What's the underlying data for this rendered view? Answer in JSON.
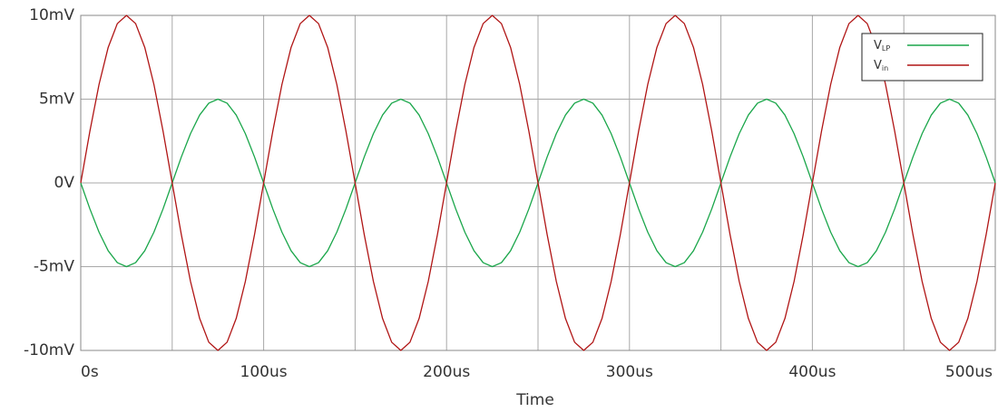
{
  "chart_data": {
    "type": "line",
    "x_label": "Time",
    "x": [
      0,
      5,
      10,
      15,
      20,
      25,
      30,
      35,
      40,
      45,
      50,
      55,
      60,
      65,
      70,
      75,
      80,
      85,
      90,
      95,
      100,
      105,
      110,
      115,
      120,
      125,
      130,
      135,
      140,
      145,
      150,
      155,
      160,
      165,
      170,
      175,
      180,
      185,
      190,
      195,
      200,
      205,
      210,
      215,
      220,
      225,
      230,
      235,
      240,
      245,
      250,
      255,
      260,
      265,
      270,
      275,
      280,
      285,
      290,
      295,
      300,
      305,
      310,
      315,
      320,
      325,
      330,
      335,
      340,
      345,
      350,
      355,
      360,
      365,
      370,
      375,
      380,
      385,
      390,
      395,
      400,
      405,
      410,
      415,
      420,
      425,
      430,
      435,
      440,
      445,
      450,
      455,
      460,
      465,
      470,
      475,
      480,
      485,
      490,
      495,
      500
    ],
    "series": [
      {
        "name": "VLP",
        "color": "#1aa64a",
        "values": [
          0,
          -1.55,
          -2.94,
          -4.05,
          -4.76,
          -5,
          -4.76,
          -4.05,
          -2.94,
          -1.55,
          0,
          1.55,
          2.94,
          4.05,
          4.76,
          5,
          4.76,
          4.05,
          2.94,
          1.55,
          0,
          -1.55,
          -2.94,
          -4.05,
          -4.76,
          -5,
          -4.76,
          -4.05,
          -2.94,
          -1.55,
          0,
          1.55,
          2.94,
          4.05,
          4.76,
          5,
          4.76,
          4.05,
          2.94,
          1.55,
          0,
          -1.55,
          -2.94,
          -4.05,
          -4.76,
          -5,
          -4.76,
          -4.05,
          -2.94,
          -1.55,
          0,
          1.55,
          2.94,
          4.05,
          4.76,
          5,
          4.76,
          4.05,
          2.94,
          1.55,
          0,
          -1.55,
          -2.94,
          -4.05,
          -4.76,
          -5,
          -4.76,
          -4.05,
          -2.94,
          -1.55,
          0,
          1.55,
          2.94,
          4.05,
          4.76,
          5,
          4.76,
          4.05,
          2.94,
          1.55,
          0,
          -1.55,
          -2.94,
          -4.05,
          -4.76,
          -5,
          -4.76,
          -4.05,
          -2.94,
          -1.55,
          0,
          1.55,
          2.94,
          4.05,
          4.76,
          5,
          4.76,
          4.05,
          2.94,
          1.55,
          0
        ]
      },
      {
        "name": "Vin",
        "color": "#b01515",
        "values": [
          0,
          3.09,
          5.88,
          8.09,
          9.51,
          10,
          9.51,
          8.09,
          5.88,
          3.09,
          0,
          -3.09,
          -5.88,
          -8.09,
          -9.51,
          -10,
          -9.51,
          -8.09,
          -5.88,
          -3.09,
          0,
          3.09,
          5.88,
          8.09,
          9.51,
          10,
          9.51,
          8.09,
          5.88,
          3.09,
          0,
          -3.09,
          -5.88,
          -8.09,
          -9.51,
          -10,
          -9.51,
          -8.09,
          -5.88,
          -3.09,
          0,
          3.09,
          5.88,
          8.09,
          9.51,
          10,
          9.51,
          8.09,
          5.88,
          3.09,
          0,
          -3.09,
          -5.88,
          -8.09,
          -9.51,
          -10,
          -9.51,
          -8.09,
          -5.88,
          -3.09,
          0,
          3.09,
          5.88,
          8.09,
          9.51,
          10,
          9.51,
          8.09,
          5.88,
          3.09,
          0,
          -3.09,
          -5.88,
          -8.09,
          -9.51,
          -10,
          -9.51,
          -8.09,
          -5.88,
          -3.09,
          0,
          3.09,
          5.88,
          8.09,
          9.51,
          10,
          9.51,
          8.09,
          5.88,
          3.09,
          0,
          -3.09,
          -5.88,
          -8.09,
          -9.51,
          -10,
          -9.51,
          -8.09,
          -5.88,
          -3.09,
          0
        ]
      }
    ],
    "xlim": [
      0,
      500
    ],
    "xticks": [
      {
        "value": 0,
        "label": "0s"
      },
      {
        "value": 100,
        "label": "100us"
      },
      {
        "value": 200,
        "label": "200us"
      },
      {
        "value": 300,
        "label": "300us"
      },
      {
        "value": 400,
        "label": "400us"
      },
      {
        "value": 500,
        "label": "500us"
      }
    ],
    "x_minor_ticks": [
      50,
      150,
      250,
      350,
      450
    ],
    "ylim": [
      -10,
      10
    ],
    "yticks": [
      {
        "value": -10,
        "label": "-10mV"
      },
      {
        "value": -5,
        "label": "-5mV"
      },
      {
        "value": 0,
        "label": "0V"
      },
      {
        "value": 5,
        "label": "5mV"
      },
      {
        "value": 10,
        "label": "10mV"
      }
    ],
    "grid": true,
    "legend": "upper right"
  }
}
